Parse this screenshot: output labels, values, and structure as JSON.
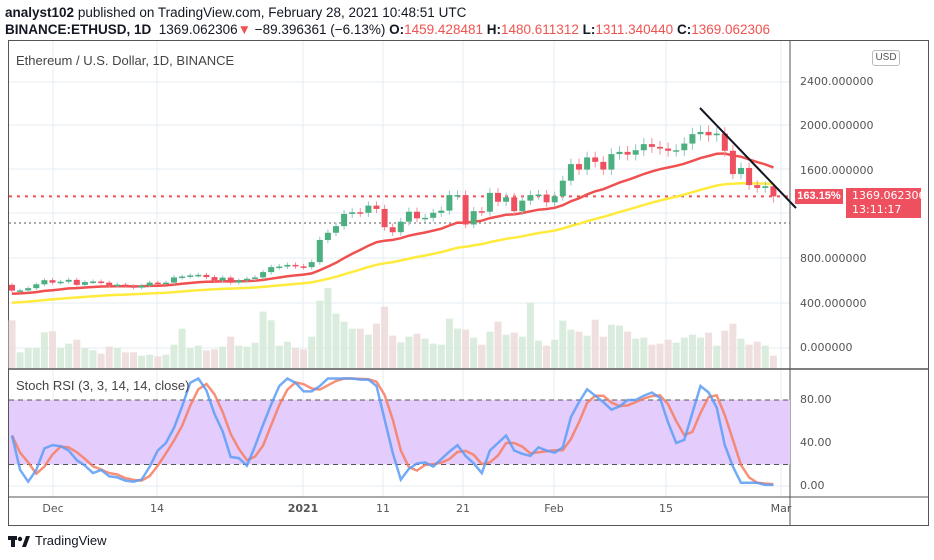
{
  "header": {
    "author": "analyst102",
    "published": "published on TradingView.com, February 28, 2021 10:48:51 UTC",
    "symbol": "BINANCE:ETHUSD, 1D",
    "last": "1369.062306",
    "change": "−89.396361 (−6.13%)",
    "o_label": "O:",
    "o": "1459.428481",
    "h_label": "H:",
    "h": "1480.611312",
    "l_label": "L:",
    "l": "1311.340440",
    "c_label": "C:",
    "c": "1369.062306"
  },
  "chart": {
    "title": "Ethereum / U.S. Dollar, 1D, BINANCE",
    "currency_button": "USD",
    "price_axis_labels": [
      "2400.000000",
      "2000.000000",
      "1600.000000",
      "800.000000",
      "400.000000",
      "0.000000"
    ],
    "price_axis_values": [
      2400,
      2000,
      1600,
      800,
      400,
      0
    ],
    "percent_badge": "163.15%",
    "current_price_badge": "1369.062306",
    "countdown": "13:11:17",
    "time_labels": [
      "Dec",
      "14",
      "2021",
      "11",
      "21",
      "Feb",
      "15",
      "Mar"
    ],
    "colors": {
      "up": "#26a69a",
      "down": "#ef5350",
      "ma_fast": "#f05050",
      "ma_slow": "#ffeb3b",
      "stoch_k": "#5b9cf6",
      "stoch_d": "#f77c60",
      "band": "#e4cdfc"
    }
  },
  "chart_data": {
    "type": "candlestick",
    "start_date": "2020-11-26",
    "end_date": "2021-02-28",
    "first_open": 570,
    "close": [
      518,
      520,
      540,
      575,
      612,
      590,
      598,
      615,
      570,
      595,
      600,
      590,
      565,
      572,
      560,
      545,
      563,
      590,
      588,
      590,
      637,
      645,
      655,
      660,
      640,
      610,
      635,
      590,
      610,
      625,
      637,
      685,
      730,
      735,
      750,
      737,
      730,
      775,
      975,
      1040,
      1100,
      1210,
      1225,
      1220,
      1285,
      1255,
      1090,
      1045,
      1140,
      1230,
      1170,
      1175,
      1220,
      1240,
      1380,
      1380,
      1115,
      1235,
      1230,
      1400,
      1320,
      1360,
      1235,
      1330,
      1380,
      1385,
      1315,
      1370,
      1510,
      1660,
      1610,
      1720,
      1680,
      1610,
      1750,
      1770,
      1745,
      1785,
      1840,
      1815,
      1800,
      1780,
      1785,
      1845,
      1930,
      1950,
      1920,
      1935,
      1780,
      1570,
      1625,
      1470,
      1445,
      1460,
      1369
    ],
    "volume_relative": [
      143,
      47,
      60,
      60,
      107,
      110,
      60,
      73,
      85,
      60,
      53,
      43,
      64,
      60,
      47,
      47,
      37,
      40,
      35,
      40,
      70,
      118,
      60,
      67,
      53,
      56,
      64,
      94,
      67,
      64,
      76,
      169,
      143,
      67,
      79,
      60,
      56,
      94,
      202,
      240,
      163,
      139,
      118,
      118,
      100,
      133,
      184,
      97,
      77,
      94,
      103,
      88,
      73,
      70,
      148,
      118,
      115,
      91,
      70,
      109,
      139,
      100,
      106,
      94,
      196,
      82,
      67,
      85,
      142,
      115,
      109,
      97,
      145,
      94,
      130,
      127,
      109,
      88,
      91,
      70,
      73,
      85,
      76,
      91,
      100,
      91,
      106,
      67,
      112,
      133,
      88,
      70,
      79,
      67,
      37
    ],
    "stoch_rsi": {
      "title": "Stoch RSI (3, 3, 14, 14, close)",
      "axis_labels": [
        "80.00",
        "40.00",
        "0.00"
      ],
      "axis_values": [
        80,
        40,
        0
      ],
      "upper_band": 80,
      "lower_band": 20,
      "k": [
        47,
        15,
        4,
        15,
        35,
        38,
        37,
        33,
        24,
        19,
        12,
        15,
        9,
        8,
        5,
        4,
        6,
        18,
        33,
        40,
        54,
        74,
        96,
        100,
        89,
        67,
        51,
        27,
        26,
        19,
        37,
        57,
        76,
        93,
        100,
        96,
        88,
        88,
        93,
        100,
        100,
        100,
        100,
        99,
        99,
        93,
        62,
        31,
        6,
        16,
        21,
        22,
        18,
        25,
        32,
        38,
        28,
        21,
        12,
        33,
        40,
        47,
        33,
        30,
        28,
        36,
        33,
        31,
        36,
        64,
        78,
        90,
        84,
        78,
        71,
        74,
        80,
        80,
        84,
        87,
        82,
        59,
        40,
        43,
        68,
        93,
        87,
        73,
        38,
        18,
        3,
        3,
        3,
        1,
        1
      ]
    },
    "ma_fast_seed": 487,
    "ma_fast_period": 20,
    "ma_slow_seed": 405,
    "ma_slow_period": 50,
    "last_high": 1480.611312,
    "last_low": 1311.34044
  },
  "footer": {
    "brand": "TradingView"
  }
}
